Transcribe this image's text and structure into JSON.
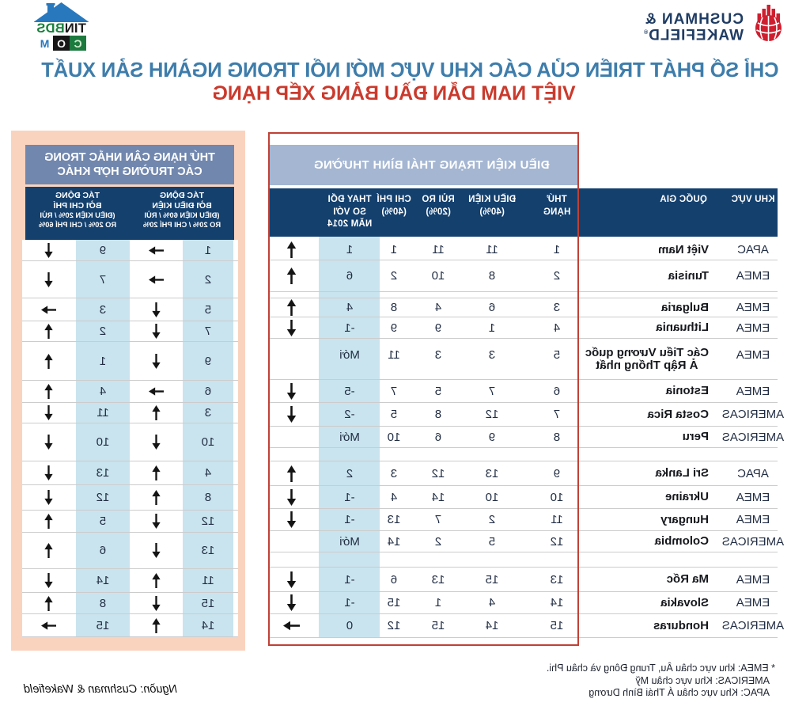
{
  "header": {
    "title_line1": "CHỈ SỐ PHÁT TRIỂN CỦA CÁC KHU VỰC MỚI NỔI TRONG NGÀNH SẢN XUẤT",
    "title_line2": "VIỆT NAM DẪN ĐẦU BẢNG XẾP HẠNG"
  },
  "branding": {
    "cushman": {
      "line1": "CUSHMAN &",
      "line2": "WAKEFIELD",
      "registered": "®"
    },
    "tinbds": {
      "name_black": "TIN",
      "name_green": "BDS",
      "com_c": "C",
      "com_o": "O",
      "com_m": "M"
    }
  },
  "colors": {
    "navy": "#14406e",
    "band_blue_gray": "#a4b6d2",
    "side_title_slate": "#7187ae",
    "salmon": "#fad3bf",
    "light_blue_column": "#c9e4ee",
    "red_box_border": "#c04135",
    "title_blue": "#3e7dab",
    "title_red": "#ca3a2d"
  },
  "main_table": {
    "band_title": "ĐIỀU KIỆN TRẠNG THÁI BÌNH THƯỜNG",
    "columns": {
      "region": [
        "KHU VỰC"
      ],
      "country": [
        "QUỐC GIA"
      ],
      "rank": [
        "THỨ",
        "HẠNG"
      ],
      "dieu_kien": [
        "ĐIỀU KIỆN",
        "(40%)"
      ],
      "rui_ro": [
        "RỦI RO",
        "(20%)"
      ],
      "chi_phi": [
        "CHI PHÍ",
        "(40%)"
      ],
      "thay_doi": [
        "THAY ĐỔI",
        "SO VỚI",
        "NĂM 2014"
      ]
    },
    "rows": [
      {
        "region": "APAC",
        "country": [
          "Việt Nam"
        ],
        "rank": "1",
        "dieu_kien": "11",
        "rui_ro": "11",
        "chi_phi": "1",
        "change": "1",
        "arrow": "up"
      },
      {
        "region": "EMEA",
        "country": [
          "Tunisia"
        ],
        "rank": "2",
        "dieu_kien": "8",
        "rui_ro": "10",
        "chi_phi": "2",
        "change": "6",
        "arrow": "up"
      },
      {
        "region": "EMEA",
        "country": [
          "Bulgaria"
        ],
        "rank": "3",
        "dieu_kien": "6",
        "rui_ro": "4",
        "chi_phi": "8",
        "change": "4",
        "arrow": "up"
      },
      {
        "region": "EMEA",
        "country": [
          "Lithuania"
        ],
        "rank": "4",
        "dieu_kien": "1",
        "rui_ro": "9",
        "chi_phi": "9",
        "change": "-1",
        "arrow": "down"
      },
      {
        "region": "EMEA",
        "country": [
          "Các Tiểu Vương quốc",
          "Ả Rập Thống nhất"
        ],
        "rank": "5",
        "dieu_kien": "3",
        "rui_ro": "3",
        "chi_phi": "11",
        "change": "Mới",
        "arrow": "none"
      },
      {
        "region": "EMEA",
        "country": [
          "Estonia"
        ],
        "rank": "6",
        "dieu_kien": "7",
        "rui_ro": "5",
        "chi_phi": "7",
        "change": "-5",
        "arrow": "down"
      },
      {
        "region": "AMERICAS",
        "country": [
          "Costa Rica"
        ],
        "rank": "7",
        "dieu_kien": "12",
        "rui_ro": "8",
        "chi_phi": "5",
        "change": "-2",
        "arrow": "down"
      },
      {
        "region": "AMERICAS",
        "country": [
          "Peru"
        ],
        "rank": "8",
        "dieu_kien": "9",
        "rui_ro": "6",
        "chi_phi": "10",
        "change": "Mới",
        "arrow": "none"
      },
      {
        "region": "APAC",
        "country": [
          "Sri Lanka"
        ],
        "rank": "9",
        "dieu_kien": "13",
        "rui_ro": "12",
        "chi_phi": "3",
        "change": "2",
        "arrow": "up"
      },
      {
        "region": "EMEA",
        "country": [
          "Ukraine"
        ],
        "rank": "10",
        "dieu_kien": "10",
        "rui_ro": "14",
        "chi_phi": "4",
        "change": "-1",
        "arrow": "down"
      },
      {
        "region": "EMEA",
        "country": [
          "Hungary"
        ],
        "rank": "11",
        "dieu_kien": "2",
        "rui_ro": "7",
        "chi_phi": "13",
        "change": "-1",
        "arrow": "down"
      },
      {
        "region": "AMERICAS",
        "country": [
          "Colombia"
        ],
        "rank": "12",
        "dieu_kien": "5",
        "rui_ro": "2",
        "chi_phi": "14",
        "change": "Mới",
        "arrow": "none"
      },
      {
        "region": "EMEA",
        "country": [
          "Ma Rốc"
        ],
        "rank": "13",
        "dieu_kien": "15",
        "rui_ro": "13",
        "chi_phi": "6",
        "change": "-1",
        "arrow": "down"
      },
      {
        "region": "EMEA",
        "country": [
          "Slovakia"
        ],
        "rank": "14",
        "dieu_kien": "4",
        "rui_ro": "1",
        "chi_phi": "15",
        "change": "-1",
        "arrow": "down"
      },
      {
        "region": "AMERICAS",
        "country": [
          "Honduras"
        ],
        "rank": "15",
        "dieu_kien": "14",
        "rui_ro": "15",
        "chi_phi": "12",
        "change": "0",
        "arrow": "right"
      }
    ]
  },
  "side_table": {
    "title_lines": [
      "THỨ HẠNG CÂN NHẮC TRONG",
      "CÁC TRƯỜNG HỢP KHÁC"
    ],
    "col1_header": {
      "bold_lines": [
        "TÁC ĐỘNG",
        "BỞI ĐIỀU KIỆN"
      ],
      "detail_lines": [
        "(ĐIỀU KIỆN 60% / RỦI",
        "RO 20% / CHI PHÍ 20%"
      ]
    },
    "col2_header": {
      "bold_lines": [
        "TÁC ĐỘNG",
        "BỞI CHI PHÍ"
      ],
      "detail_lines": [
        "(ĐIỀU KIỆN 20% / RỦI",
        "RO 20% / CHI PHÍ 60%"
      ]
    },
    "rows": [
      {
        "dk_rank": "1",
        "dk_arrow": "right",
        "cp_rank": "9",
        "cp_arrow": "down"
      },
      {
        "dk_rank": "2",
        "dk_arrow": "right",
        "cp_rank": "7",
        "cp_arrow": "down"
      },
      {
        "dk_rank": "5",
        "dk_arrow": "down",
        "cp_rank": "3",
        "cp_arrow": "right"
      },
      {
        "dk_rank": "7",
        "dk_arrow": "down",
        "cp_rank": "2",
        "cp_arrow": "up"
      },
      {
        "dk_rank": "9",
        "dk_arrow": "down",
        "cp_rank": "1",
        "cp_arrow": "up"
      },
      {
        "dk_rank": "6",
        "dk_arrow": "right",
        "cp_rank": "4",
        "cp_arrow": "up"
      },
      {
        "dk_rank": "3",
        "dk_arrow": "up",
        "cp_rank": "11",
        "cp_arrow": "down"
      },
      {
        "dk_rank": "10",
        "dk_arrow": "down",
        "cp_rank": "10",
        "cp_arrow": "down"
      },
      {
        "dk_rank": "4",
        "dk_arrow": "up",
        "cp_rank": "13",
        "cp_arrow": "down"
      },
      {
        "dk_rank": "8",
        "dk_arrow": "up",
        "cp_rank": "12",
        "cp_arrow": "down"
      },
      {
        "dk_rank": "12",
        "dk_arrow": "down",
        "cp_rank": "5",
        "cp_arrow": "up"
      },
      {
        "dk_rank": "13",
        "dk_arrow": "down",
        "cp_rank": "6",
        "cp_arrow": "up"
      },
      {
        "dk_rank": "11",
        "dk_arrow": "up",
        "cp_rank": "14",
        "cp_arrow": "down"
      },
      {
        "dk_rank": "15",
        "dk_arrow": "down",
        "cp_rank": "8",
        "cp_arrow": "up"
      },
      {
        "dk_rank": "14",
        "dk_arrow": "up",
        "cp_rank": "15",
        "cp_arrow": "right"
      }
    ]
  },
  "footnotes": [
    "* EMEA: khu vực châu Âu, Trung Đông và châu Phi.",
    "AMERICAS: Khu vực châu Mỹ",
    "APAC: Khu vực châu Á Thái Bình Dương"
  ],
  "source": "Nguồn: Cushman & Wakefield",
  "chart_data": {
    "type": "table",
    "title": "CHỈ SỐ PHÁT TRIỂN CỦA CÁC KHU VỰC MỚI NỔI TRONG NGÀNH SẢN XUẤT",
    "subtitle": "VIỆT NAM DẪN ĐẦU BẢNG XẾP HẠNG",
    "columns": [
      "KHU VỰC",
      "QUỐC GIA",
      "THỨ HẠNG",
      "ĐIỀU KIỆN (40%)",
      "RỦI RO (20%)",
      "CHI PHÍ (40%)",
      "THAY ĐỔI SO VỚI NĂM 2014",
      "TÁC ĐỘNG BỞI ĐIỀU KIỆN (ĐIỀU KIỆN 60% / RỦI RO 20% / CHI PHÍ 20%)",
      "TÁC ĐỘNG BỞI CHI PHÍ (ĐIỀU KIỆN 20% / RỦI RO 20% / CHI PHÍ 60%)"
    ],
    "rows": [
      [
        "APAC",
        "Việt Nam",
        1,
        11,
        11,
        1,
        "1 ↑",
        "1 →",
        "9 ↓"
      ],
      [
        "EMEA",
        "Tunisia",
        2,
        8,
        10,
        2,
        "6 ↑",
        "2 →",
        "7 ↓"
      ],
      [
        "EMEA",
        "Bulgaria",
        3,
        6,
        4,
        8,
        "4 ↑",
        "5 ↓",
        "3 →"
      ],
      [
        "EMEA",
        "Lithuania",
        4,
        1,
        9,
        9,
        "-1 ↓",
        "7 ↓",
        "2 ↑"
      ],
      [
        "EMEA",
        "Các Tiểu Vương quốc Ả Rập Thống nhất",
        5,
        3,
        3,
        11,
        "Mới",
        "9 ↓",
        "1 ↑"
      ],
      [
        "EMEA",
        "Estonia",
        6,
        7,
        5,
        7,
        "-5 ↓",
        "6 →",
        "4 ↑"
      ],
      [
        "AMERICAS",
        "Costa Rica",
        7,
        12,
        8,
        5,
        "-2 ↓",
        "3 ↑",
        "11 ↓"
      ],
      [
        "AMERICAS",
        "Peru",
        8,
        9,
        6,
        10,
        "Mới",
        "10 ↓",
        "10 ↓"
      ],
      [
        "APAC",
        "Sri Lanka",
        9,
        13,
        12,
        3,
        "2 ↑",
        "4 ↑",
        "13 ↓"
      ],
      [
        "EMEA",
        "Ukraine",
        10,
        10,
        14,
        4,
        "-1 ↓",
        "8 ↑",
        "12 ↓"
      ],
      [
        "EMEA",
        "Hungary",
        11,
        2,
        7,
        13,
        "-1 ↓",
        "12 ↓",
        "5 ↑"
      ],
      [
        "AMERICAS",
        "Colombia",
        12,
        5,
        2,
        14,
        "Mới",
        "13 ↓",
        "6 ↑"
      ],
      [
        "EMEA",
        "Ma Rốc",
        13,
        15,
        13,
        6,
        "-1 ↓",
        "11 ↑",
        "14 ↓"
      ],
      [
        "EMEA",
        "Slovakia",
        14,
        4,
        1,
        15,
        "-1 ↓",
        "15 ↓",
        "8 ↑"
      ],
      [
        "AMERICAS",
        "Honduras",
        15,
        14,
        15,
        12,
        "0 →",
        "14 ↑",
        "15 →"
      ]
    ]
  }
}
